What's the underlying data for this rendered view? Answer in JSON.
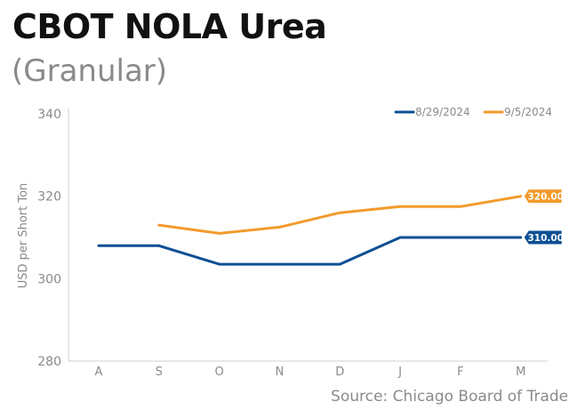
{
  "header": {
    "title": "CBOT NOLA Urea",
    "subtitle": "(Granular)"
  },
  "source": "Source: Chicago Board of Trade",
  "colors": {
    "series_1": "#0d4f94",
    "series_2": "#f39a2b",
    "axis": "#cfcfcf",
    "tick_text": "#8a8a8a"
  },
  "chart_data": {
    "type": "line",
    "title": "CBOT NOLA Urea",
    "subtitle": "(Granular)",
    "xlabel": "",
    "ylabel": "USD per Short Ton",
    "categories": [
      "A",
      "S",
      "O",
      "N",
      "D",
      "J",
      "F",
      "M"
    ],
    "ylim": [
      280,
      340
    ],
    "yticks": [
      280,
      300,
      320,
      340
    ],
    "grid": false,
    "legend": "top-right",
    "series": [
      {
        "name": "8/29/2024",
        "values": [
          308,
          308,
          303.5,
          303.5,
          303.5,
          310,
          310,
          310
        ],
        "end_label": "310.00"
      },
      {
        "name": "9/5/2024",
        "values": [
          null,
          313,
          311,
          312.5,
          316,
          317.5,
          317.5,
          320
        ],
        "end_label": "320.00"
      }
    ]
  }
}
